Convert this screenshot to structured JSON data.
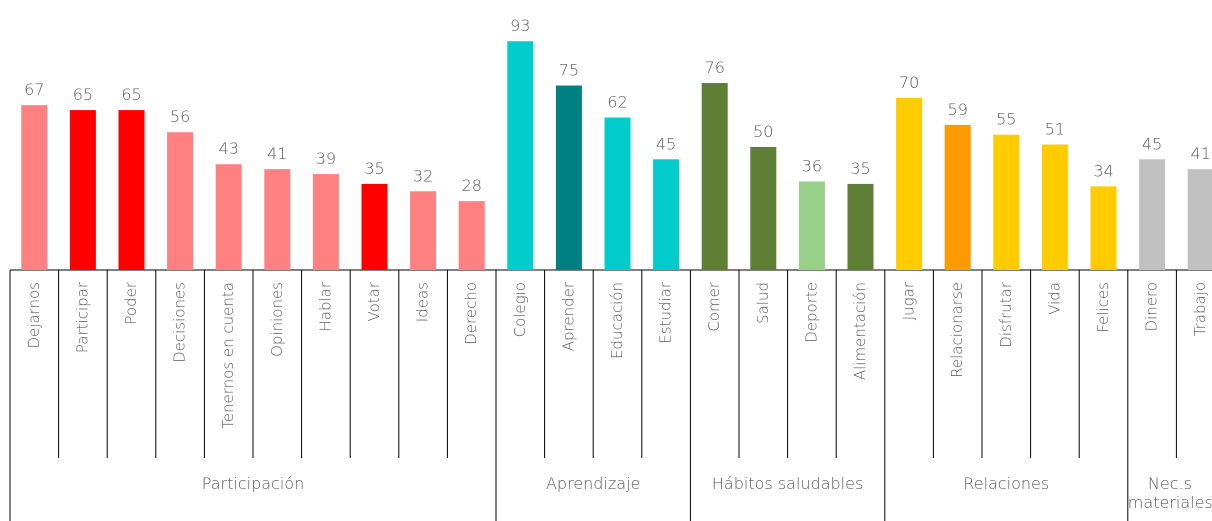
{
  "chart_data": {
    "type": "bar",
    "groups": [
      {
        "name": "Participación",
        "categories": [
          "Dejarnos",
          "Participar",
          "Poder",
          "Decisiones",
          "Tenernos en cuenta",
          "Opiniones",
          "Hablar",
          "Votar",
          "Ideas",
          "Derecho"
        ],
        "values": [
          67,
          65,
          65,
          56,
          43,
          41,
          39,
          35,
          32,
          28
        ],
        "colors": [
          "#ff8080",
          "#ff0000",
          "#ff0000",
          "#ff8080",
          "#ff8080",
          "#ff8080",
          "#ff8080",
          "#ff0000",
          "#ff8080",
          "#ff8080"
        ]
      },
      {
        "name": "Aprendizaje",
        "categories": [
          "Colegio",
          "Aprender",
          "Educación",
          "Estudiar"
        ],
        "values": [
          93,
          75,
          62,
          45
        ],
        "colors": [
          "#00cccc",
          "#008080",
          "#00cccc",
          "#00cccc"
        ]
      },
      {
        "name": "Hábitos saludables",
        "categories": [
          "Comer",
          "Salud",
          "Deporte",
          "Alimentación"
        ],
        "values": [
          76,
          50,
          36,
          35
        ],
        "colors": [
          "#5e7e35",
          "#5e7e35",
          "#99d18a",
          "#5e7e35"
        ]
      },
      {
        "name": "Relaciones",
        "categories": [
          "Jugar",
          "Relacionarse",
          "Disfrutar",
          "Vida",
          "Felices"
        ],
        "values": [
          70,
          59,
          55,
          51,
          34
        ],
        "colors": [
          "#ffcc00",
          "#ff9900",
          "#ffcc00",
          "#ffcc00",
          "#ffcc00"
        ]
      },
      {
        "name": "Nec.s materiales",
        "categories": [
          "Dinero",
          "Trabajo"
        ],
        "values": [
          45,
          41
        ],
        "colors": [
          "#c0c0c0",
          "#c0c0c0"
        ]
      }
    ]
  }
}
